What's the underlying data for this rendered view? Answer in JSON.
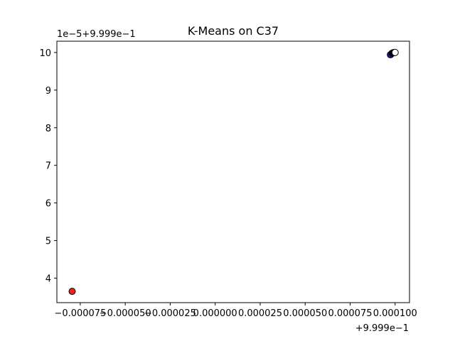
{
  "chart_data": {
    "type": "scatter",
    "title": "K-Means on C37",
    "xlabel": "",
    "ylabel": "",
    "x_offset_label": "+9.999e−1",
    "y_offset_label": "1e−5+9.999e−1",
    "xlim": [
      -8.8e-05,
      0.000108
    ],
    "ylim": [
      3.35,
      10.3
    ],
    "x_ticks": [
      {
        "value": -7.5e-05,
        "label": "−0.000075"
      },
      {
        "value": -5e-05,
        "label": "−0.000050"
      },
      {
        "value": -2.5e-05,
        "label": "−0.000025"
      },
      {
        "value": 0.0,
        "label": "0.000000"
      },
      {
        "value": 2.5e-05,
        "label": "0.000025"
      },
      {
        "value": 5e-05,
        "label": "0.000050"
      },
      {
        "value": 7.5e-05,
        "label": "0.000075"
      },
      {
        "value": 0.0001,
        "label": "0.000100"
      }
    ],
    "y_ticks": [
      {
        "value": 4,
        "label": "4"
      },
      {
        "value": 5,
        "label": "5"
      },
      {
        "value": 6,
        "label": "6"
      },
      {
        "value": 7,
        "label": "7"
      },
      {
        "value": 8,
        "label": "8"
      },
      {
        "value": 9,
        "label": "9"
      },
      {
        "value": 10,
        "label": "10"
      }
    ],
    "grid": false,
    "points": [
      {
        "x": -7.95e-05,
        "y": 3.65,
        "color": "#e8261b"
      },
      {
        "x": 9.74e-05,
        "y": 9.94,
        "color": "#1a1aa8"
      },
      {
        "x": 9.83e-05,
        "y": 9.98,
        "color": "#1a1aa8"
      },
      {
        "x": 9.88e-05,
        "y": 9.99,
        "color": "#1a1aa8"
      },
      {
        "x": 9.91e-05,
        "y": 9.995,
        "color": "#1a1aa8"
      },
      {
        "x": 9.94e-05,
        "y": 9.995,
        "color": "#ffffff"
      },
      {
        "x": 9.97e-05,
        "y": 9.998,
        "color": "#ffffff"
      },
      {
        "x": 9.99e-05,
        "y": 10.0,
        "color": "#ffffff"
      },
      {
        "x": 0.0001,
        "y": 10.0,
        "color": "#ffffff"
      }
    ]
  }
}
